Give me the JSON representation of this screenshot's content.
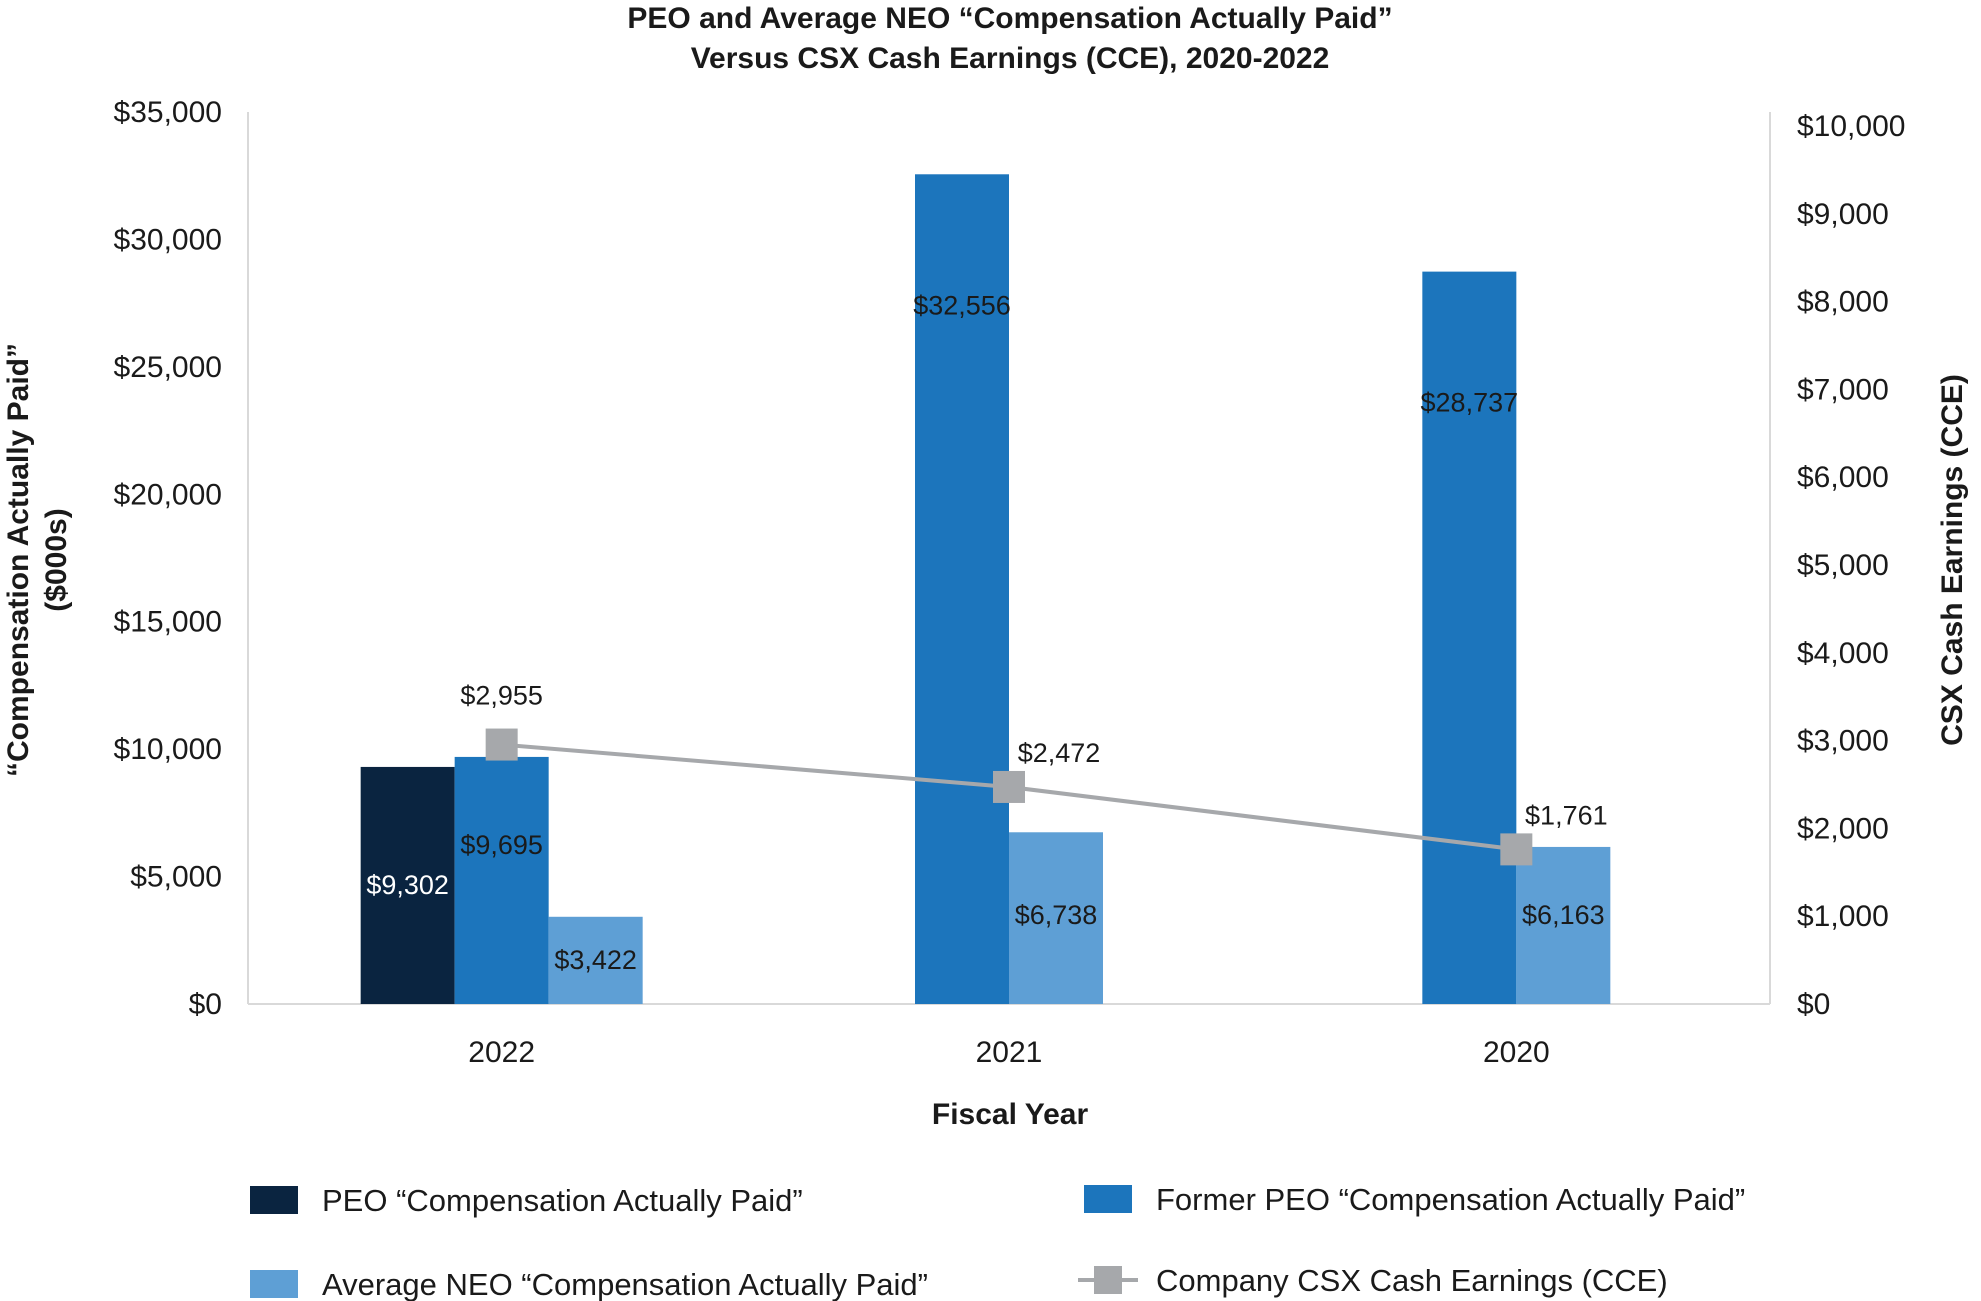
{
  "chart_data": {
    "type": "bar",
    "title": [
      "PEO and Average NEO “Compensation Actually Paid”",
      "Versus CSX Cash Earnings (CCE), 2020-2022"
    ],
    "xlabel": "Fiscal Year",
    "ylabel": [
      "“Compensation Actually Paid”",
      "($000s)"
    ],
    "y2label": "CSX Cash Earnings (CCE)",
    "categories": [
      "2022",
      "2021",
      "2020"
    ],
    "ylim": [
      0,
      35000
    ],
    "y2lim": [
      0,
      10000
    ],
    "y_ticks": [
      "$0",
      "$5,000",
      "$10,000",
      "$15,000",
      "$20,000",
      "$25,000",
      "$30,000",
      "$35,000"
    ],
    "y_tick_values": [
      0,
      5000,
      10000,
      15000,
      20000,
      25000,
      30000,
      35000
    ],
    "y2_ticks": [
      "$0",
      "$1,000",
      "$2,000",
      "$3,000",
      "$4,000",
      "$5,000",
      "$6,000",
      "$7,000",
      "$8,000",
      "$9,000",
      "$10,000"
    ],
    "y2_tick_values": [
      0,
      1000,
      2000,
      3000,
      4000,
      5000,
      6000,
      7000,
      8000,
      9000,
      10000
    ],
    "series": [
      {
        "name": "PEO “Compensation Actually Paid”",
        "kind": "bar",
        "axis": "left",
        "color": "#0a2440",
        "values": [
          9302,
          null,
          null
        ],
        "labels": [
          "$9,302",
          null,
          null
        ],
        "label_color": "#ffffff"
      },
      {
        "name": "Former PEO “Compensation Actually Paid”",
        "kind": "bar",
        "axis": "left",
        "color": "#1c75bc",
        "values": [
          9695,
          32556,
          28737
        ],
        "labels": [
          "$9,695",
          "$32,556",
          "$28,737"
        ],
        "label_color": "#1a1a1a"
      },
      {
        "name": "Average NEO “Compensation Actually Paid”",
        "kind": "bar",
        "axis": "left",
        "color": "#5e9fd5",
        "values": [
          3422,
          6738,
          6163
        ],
        "labels": [
          "$3,422",
          "$6,738",
          "$6,163"
        ],
        "label_color": "#1a1a1a"
      },
      {
        "name": "Company CSX Cash Earnings (CCE)",
        "kind": "line",
        "axis": "right",
        "color": "#a6a8ab",
        "values": [
          2955,
          2472,
          1761
        ],
        "labels": [
          "$2,955",
          "$2,472",
          "$1,761"
        ],
        "label_color": "#1a1a1a"
      }
    ],
    "legend": {
      "placement": "bottom",
      "order": [
        0,
        1,
        2,
        3
      ]
    },
    "grid": false
  }
}
